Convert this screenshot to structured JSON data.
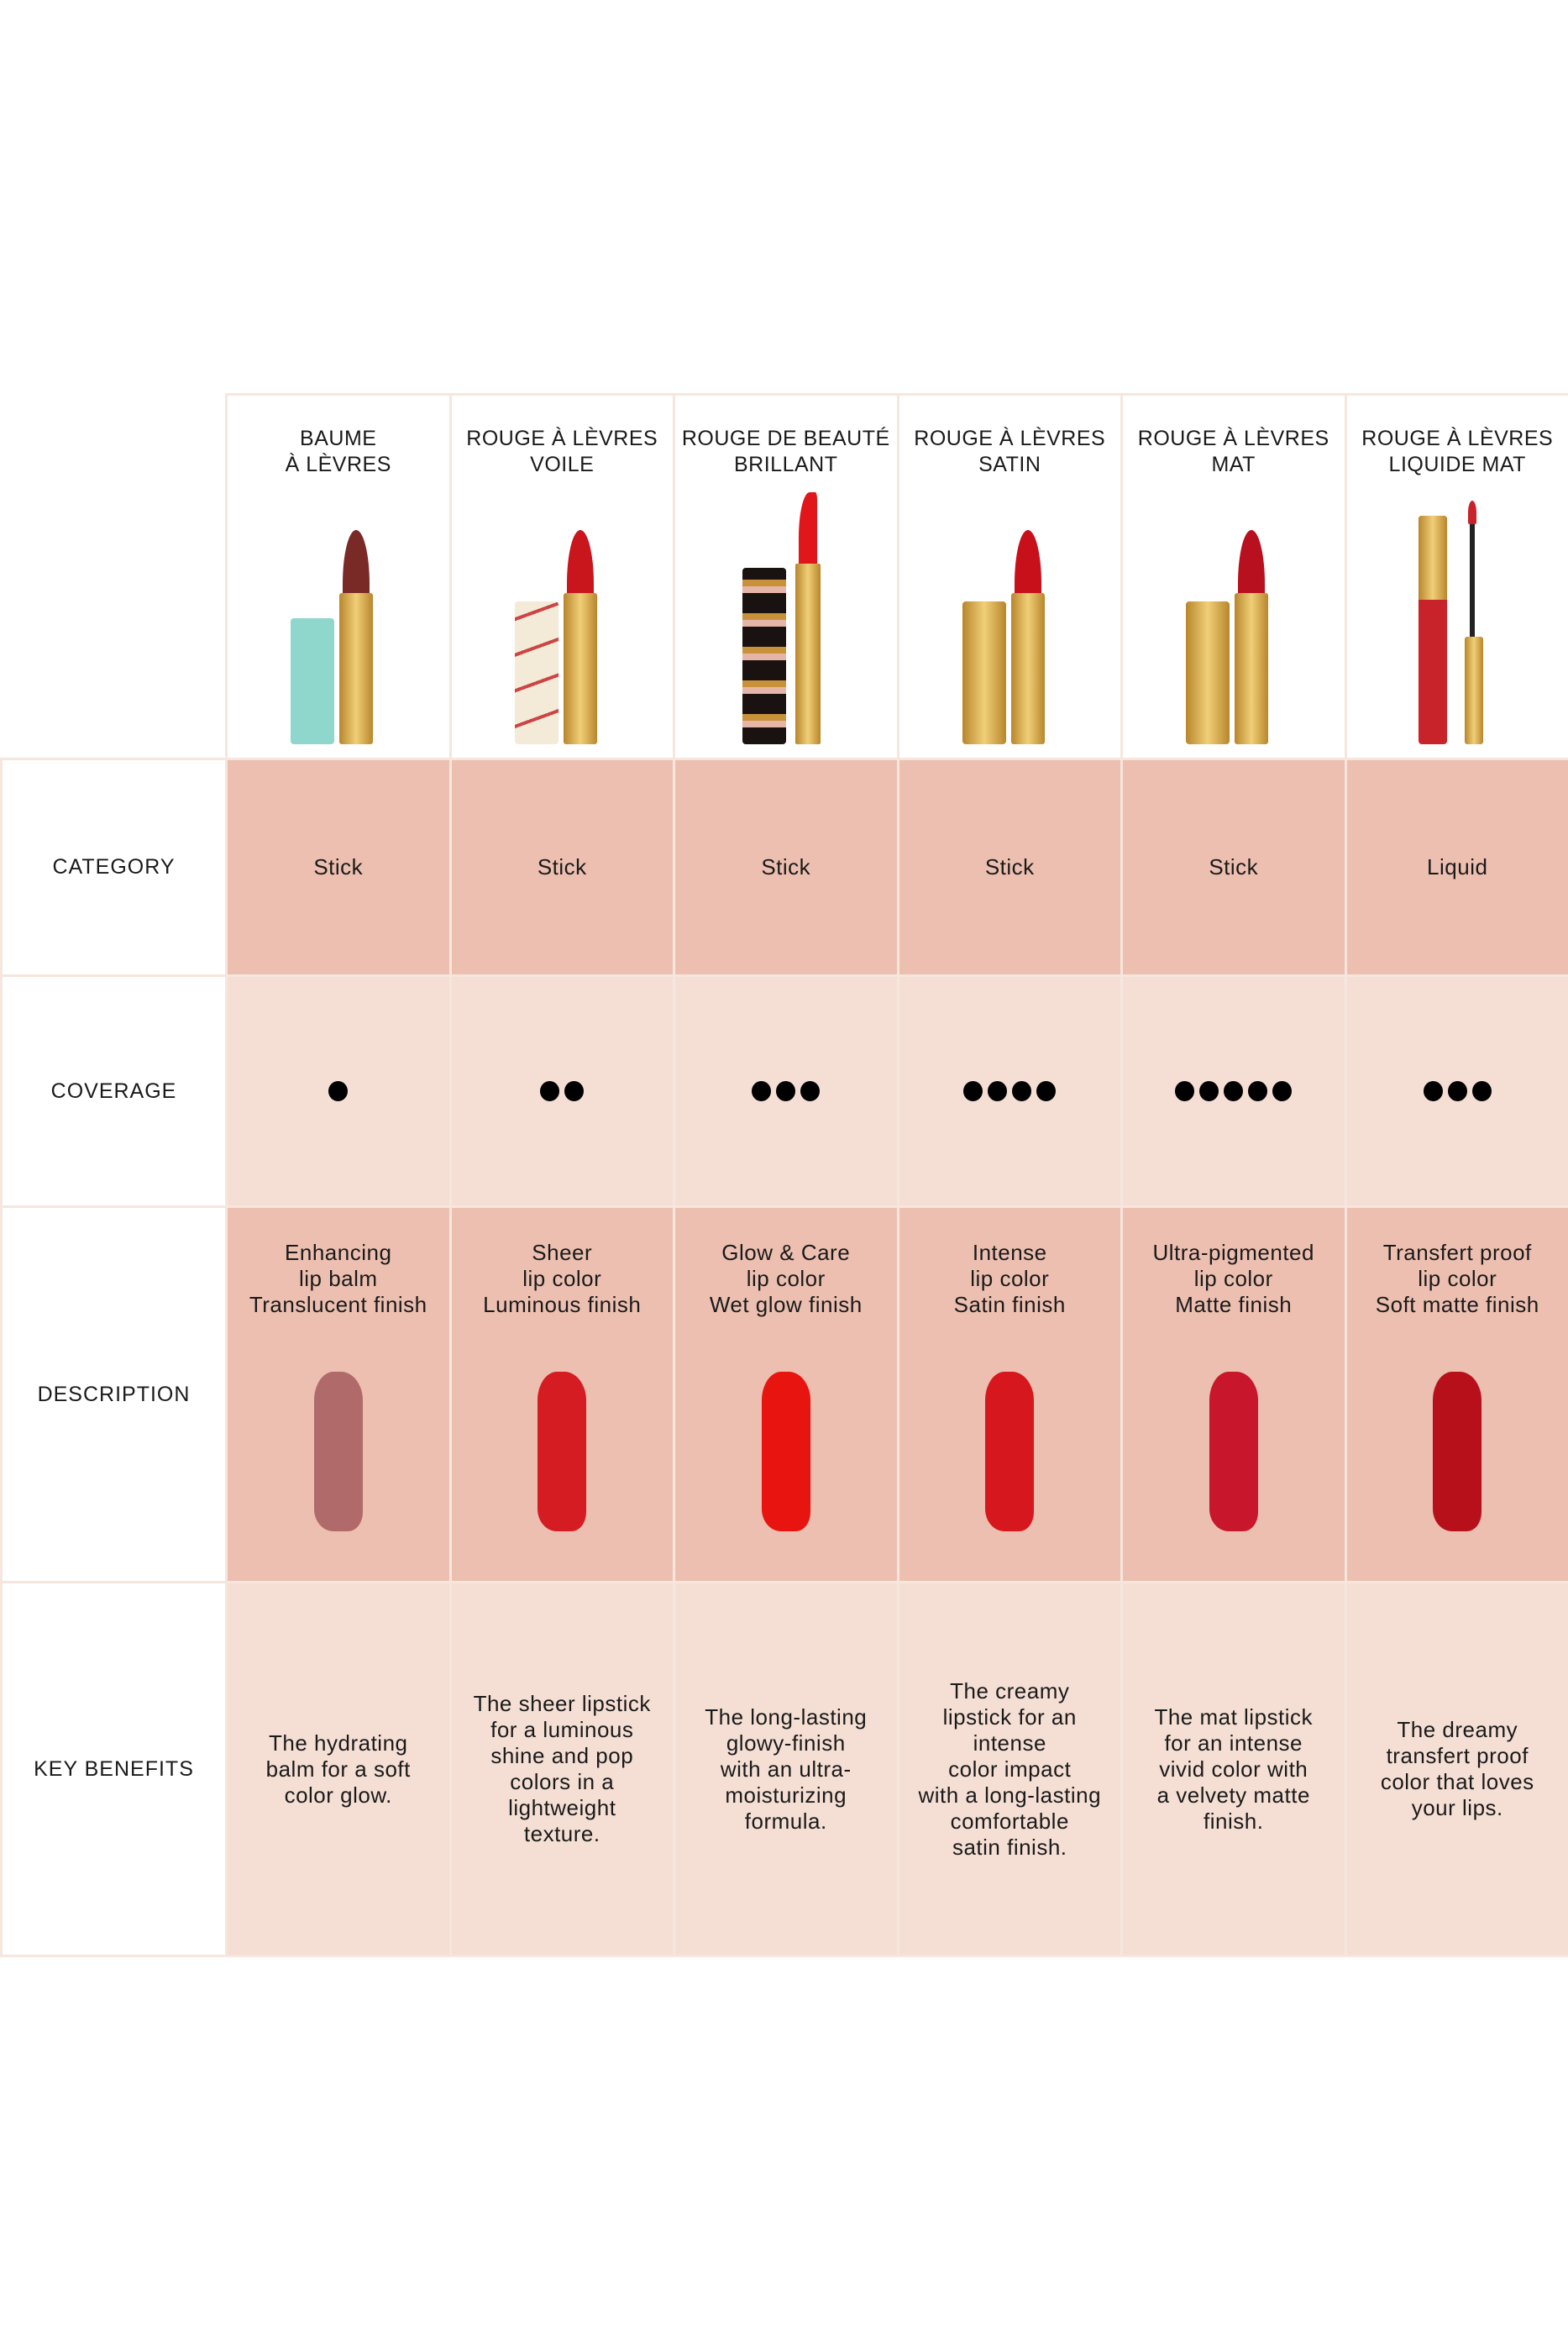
{
  "row_labels": {
    "category": "CATEGORY",
    "coverage": "COVERAGE",
    "description": "DESCRIPTION",
    "key_benefits": "KEY BENEFITS"
  },
  "colors": {
    "row_dark": "#ecbfb0",
    "row_light": "#f5dfd4",
    "gold": "#d9a84a"
  },
  "products": [
    {
      "name": "BAUME\nÀ LÈVRES",
      "category": "Stick",
      "coverage": 1,
      "description": "Enhancing\nlip balm\nTranslucent finish",
      "key_benefits": "The hydrating\nbalm for a soft\ncolor glow.",
      "cap_color": "#8fd6cc",
      "bullet_color": "#7a2a26",
      "swatch_color": "#b06a6a"
    },
    {
      "name": "ROUGE À LÈVRES\nVOILE",
      "category": "Stick",
      "coverage": 2,
      "description": "Sheer\nlip color\nLuminous finish",
      "key_benefits": "The sheer lipstick\nfor a luminous\nshine and pop\ncolors in a\nlightweight\ntexture.",
      "cap_color": "#f3ead8",
      "bullet_color": "#c8161c",
      "swatch_color": "#d51c22"
    },
    {
      "name": "ROUGE DE BEAUTÉ\nBRILLANT",
      "category": "Stick",
      "coverage": 3,
      "description": "Glow & Care\nlip color\nWet glow finish",
      "key_benefits": "The long-lasting\nglowy-finish\nwith an ultra-\nmoisturizing\nformula.",
      "cap_color": "#1a1210",
      "bullet_color": "#e0161a",
      "swatch_color": "#e8140f"
    },
    {
      "name": "ROUGE À LÈVRES\nSATIN",
      "category": "Stick",
      "coverage": 4,
      "description": "Intense\nlip color\nSatin finish",
      "key_benefits": "The creamy\nlipstick for an\nintense\ncolor impact\nwith a long-lasting\ncomfortable\nsatin finish.",
      "cap_color": "#d9a84a",
      "bullet_color": "#c8101a",
      "swatch_color": "#d6171d"
    },
    {
      "name": "ROUGE À LÈVRES\nMAT",
      "category": "Stick",
      "coverage": 5,
      "description": "Ultra-pigmented\nlip color\nMatte finish",
      "key_benefits": "The mat lipstick\nfor an intense\nvivid color with\na velvety matte\nfinish.",
      "cap_color": "#d9a84a",
      "bullet_color": "#b8101e",
      "swatch_color": "#c8162c"
    },
    {
      "name": "ROUGE À LÈVRES\nLIQUIDE MAT",
      "category": "Liquid",
      "coverage": 3,
      "description": "Transfert proof\nlip color\nSoft matte finish",
      "key_benefits": "The dreamy\ntransfert proof\ncolor that loves\nyour lips.",
      "cap_color": "#d9a84a",
      "bullet_color": "#c8232a",
      "swatch_color": "#b8101a"
    }
  ]
}
